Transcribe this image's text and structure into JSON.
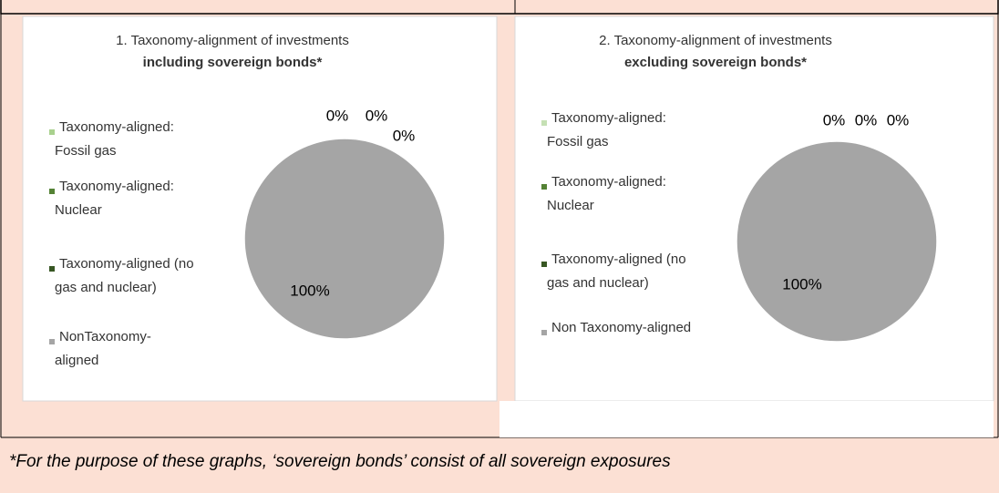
{
  "chart_data": [
    {
      "type": "pie",
      "title": "1. Taxonomy-alignment of investments",
      "subtitle": "including sovereign bonds*",
      "categories": [
        [
          "Taxonomy-aligned:",
          "Fossil gas"
        ],
        [
          "Taxonomy-aligned:",
          "Nuclear"
        ],
        [
          "Taxonomy-aligned (no",
          "gas and nuclear)"
        ],
        [
          "NonTaxonomy-",
          "aligned"
        ]
      ],
      "values": [
        0,
        0,
        0,
        100
      ],
      "value_labels": [
        "0%",
        "0%",
        "0%",
        "100%"
      ],
      "colors": [
        "#a9d18e",
        "#548235",
        "#375623",
        "#a5a5a5"
      ]
    },
    {
      "type": "pie",
      "title": "2. Taxonomy-alignment of investments",
      "subtitle": "excluding sovereign bonds*",
      "categories": [
        [
          "Taxonomy-aligned:",
          "Fossil gas"
        ],
        [
          "Taxonomy-aligned:",
          "Nuclear"
        ],
        [
          "Taxonomy-aligned (no",
          "gas and nuclear)"
        ],
        [
          "Non Taxonomy-aligned"
        ]
      ],
      "values": [
        0,
        0,
        0,
        100
      ],
      "value_labels": [
        "0%",
        "0%",
        "0%",
        "100%"
      ],
      "colors": [
        "#c5e0b4",
        "#548235",
        "#375623",
        "#a5a5a5"
      ]
    }
  ],
  "footnote": "*For the purpose of these graphs, ‘sovereign bonds’ consist of all sovereign exposures"
}
